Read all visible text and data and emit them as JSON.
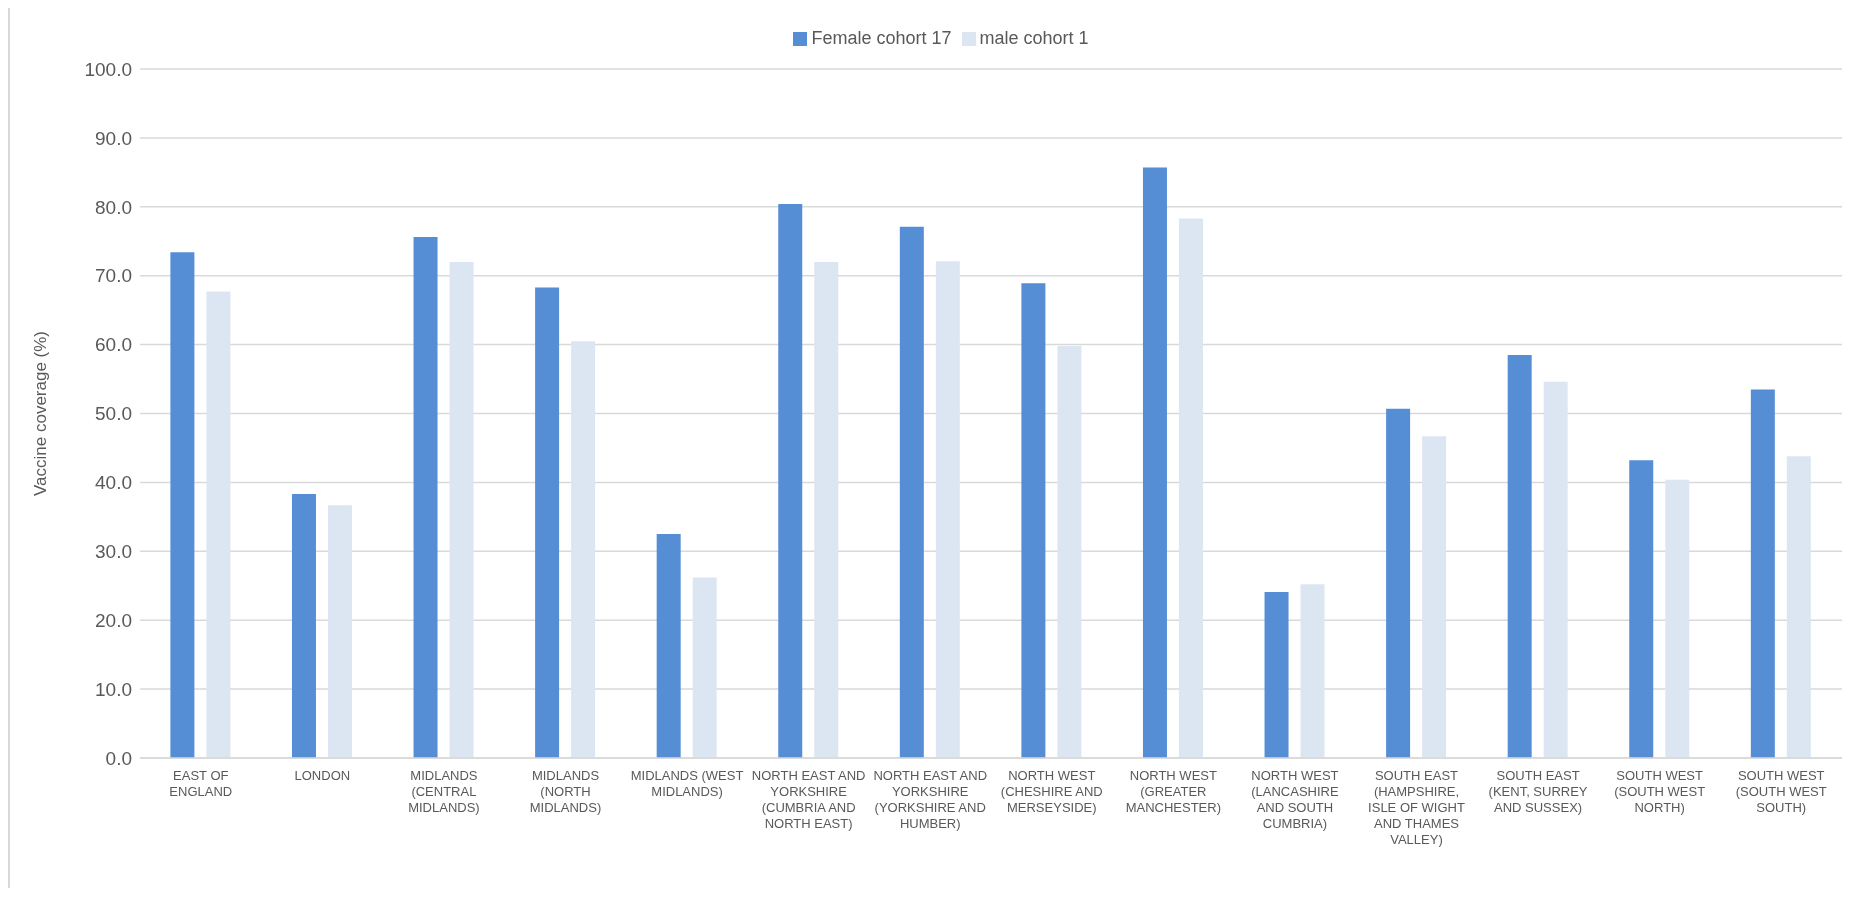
{
  "chart_data": {
    "type": "bar",
    "ylabel": "Vaccine coverage (%)",
    "categories": [
      "EAST OF ENGLAND",
      "LONDON",
      "MIDLANDS (CENTRAL MIDLANDS)",
      "MIDLANDS (NORTH MIDLANDS)",
      "MIDLANDS (WEST MIDLANDS)",
      "NORTH EAST AND YORKSHIRE (CUMBRIA AND NORTH EAST)",
      "NORTH EAST AND YORKSHIRE (YORKSHIRE AND HUMBER)",
      "NORTH WEST (CHESHIRE AND MERSEYSIDE)",
      "NORTH WEST (GREATER MANCHESTER)",
      "NORTH WEST (LANCASHIRE AND SOUTH CUMBRIA)",
      "SOUTH EAST (HAMPSHIRE, ISLE OF WIGHT AND THAMES VALLEY)",
      "SOUTH EAST (KENT, SURREY AND SUSSEX)",
      "SOUTH WEST (SOUTH WEST NORTH)",
      "SOUTH WEST (SOUTH WEST SOUTH)"
    ],
    "series": [
      {
        "name": "Female cohort 17",
        "color": "#558ed5",
        "values": [
          73.4,
          38.3,
          75.6,
          68.3,
          32.5,
          80.4,
          77.1,
          68.9,
          85.7,
          24.1,
          50.7,
          58.5,
          43.2,
          53.5
        ]
      },
      {
        "name": "male cohort 1",
        "color": "#dce6f2",
        "values": [
          67.7,
          36.7,
          72.0,
          60.5,
          26.2,
          72.0,
          72.1,
          59.8,
          78.3,
          25.2,
          46.7,
          54.6,
          40.4,
          43.8
        ]
      }
    ],
    "ylim": [
      0,
      100
    ],
    "yticks": [
      {
        "value": 0,
        "label": "0.0"
      },
      {
        "value": 10,
        "label": "10.0"
      },
      {
        "value": 20,
        "label": "20.0"
      },
      {
        "value": 30,
        "label": "30.0"
      },
      {
        "value": 40,
        "label": "40.0"
      },
      {
        "value": 50,
        "label": "50.0"
      },
      {
        "value": 60,
        "label": "60.0"
      },
      {
        "value": 70,
        "label": "70.0"
      },
      {
        "value": 80,
        "label": "80.0"
      },
      {
        "value": 90,
        "label": "90.0"
      },
      {
        "value": 100,
        "label": "100.0"
      }
    ],
    "grid": "y",
    "legend": "top"
  }
}
